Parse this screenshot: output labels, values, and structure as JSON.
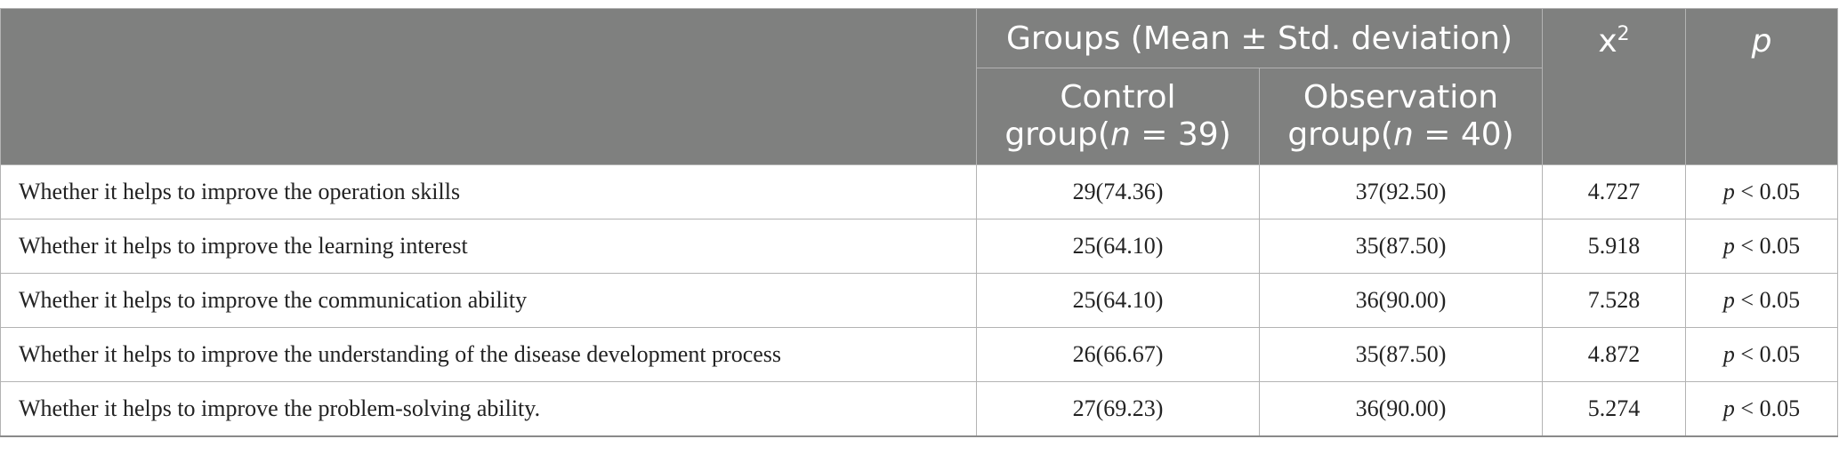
{
  "header": {
    "group_title": "Groups (Mean ± Std. deviation)",
    "control_line1": "Control",
    "control_prefix": "group(",
    "control_n": "n",
    "control_rest": " = 39)",
    "observation_line1": "Observation",
    "observation_prefix": "group(",
    "observation_n": "n",
    "observation_rest": " = 40)",
    "chi_base": "x",
    "chi_sup": "2",
    "p_label": "p"
  },
  "rows": [
    {
      "item": "Whether it helps to improve the operation skills",
      "control": "29(74.36)",
      "observation": "37(92.50)",
      "chi": "4.727",
      "p_sym": "p",
      "p_rest": " < 0.05"
    },
    {
      "item": "Whether it helps to improve the learning interest",
      "control": "25(64.10)",
      "observation": "35(87.50)",
      "chi": "5.918",
      "p_sym": "p",
      "p_rest": " < 0.05"
    },
    {
      "item": "Whether it helps to improve the communication ability",
      "control": "25(64.10)",
      "observation": "36(90.00)",
      "chi": "7.528",
      "p_sym": "p",
      "p_rest": " < 0.05"
    },
    {
      "item": "Whether it helps to improve the understanding of the disease development process",
      "control": "26(66.67)",
      "observation": "35(87.50)",
      "chi": "4.872",
      "p_sym": "p",
      "p_rest": " < 0.05"
    },
    {
      "item": "Whether it helps to improve the problem-solving ability.",
      "control": "27(69.23)",
      "observation": "36(90.00)",
      "chi": "5.274",
      "p_sym": "p",
      "p_rest": " < 0.05"
    }
  ],
  "colors": {
    "header_bg": "#7f807f",
    "header_text": "#ffffff",
    "border": "#b3b3b3"
  }
}
